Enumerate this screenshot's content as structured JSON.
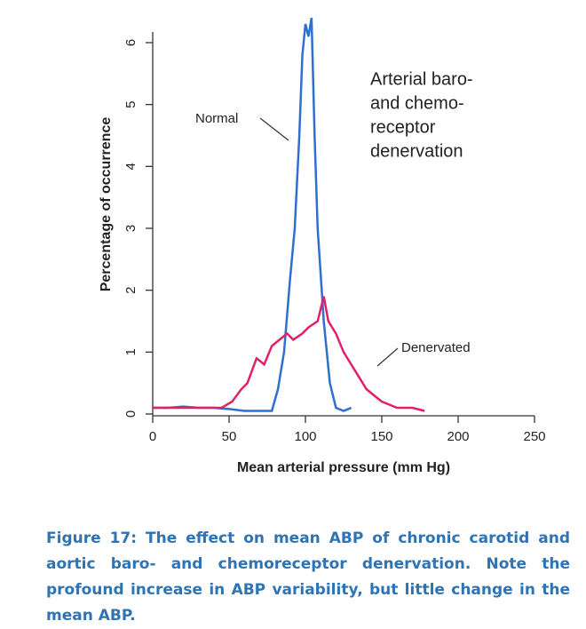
{
  "chart_data": {
    "type": "line",
    "x_label": "Mean arterial pressure (mm Hg)",
    "y_label": "Percentage of occurrence",
    "annotation_lines": [
      "Arterial baro-",
      "and chemo-",
      "receptor",
      "denervation"
    ],
    "xlim": [
      0,
      250
    ],
    "xticks": [
      0,
      50,
      100,
      150,
      200,
      250
    ],
    "ylim": [
      0,
      6
    ],
    "yticks": [
      0,
      1,
      2,
      3,
      4,
      5,
      6
    ],
    "series": [
      {
        "name": "Normal",
        "color": "#2f6fd0",
        "x": [
          0,
          10,
          20,
          30,
          40,
          50,
          60,
          70,
          78,
          82,
          86,
          90,
          93,
          96,
          98,
          100,
          102,
          104,
          106,
          108,
          112,
          116,
          120,
          125,
          130
        ],
        "values": [
          0.1,
          0.1,
          0.12,
          0.1,
          0.1,
          0.08,
          0.05,
          0.05,
          0.05,
          0.4,
          1.0,
          2.2,
          3.0,
          4.5,
          5.8,
          6.3,
          6.1,
          6.4,
          4.5,
          3.0,
          1.5,
          0.5,
          0.1,
          0.05,
          0.1
        ]
      },
      {
        "name": "Denervated",
        "color": "#e0206a",
        "x": [
          0,
          20,
          35,
          45,
          52,
          58,
          62,
          68,
          73,
          78,
          83,
          88,
          92,
          98,
          102,
          108,
          112,
          115,
          120,
          125,
          130,
          135,
          140,
          145,
          150,
          160,
          170,
          178
        ],
        "values": [
          0.1,
          0.1,
          0.1,
          0.1,
          0.2,
          0.4,
          0.5,
          0.9,
          0.8,
          1.1,
          1.2,
          1.3,
          1.2,
          1.3,
          1.4,
          1.5,
          1.9,
          1.5,
          1.3,
          1.0,
          0.8,
          0.6,
          0.4,
          0.3,
          0.2,
          0.1,
          0.1,
          0.05
        ]
      }
    ]
  },
  "caption": "Figure 17: The effect on mean ABP of chronic carotid and aortic baro- and chemoreceptor denervation. Note the profound increase in ABP variability, but little change in the mean ABP."
}
